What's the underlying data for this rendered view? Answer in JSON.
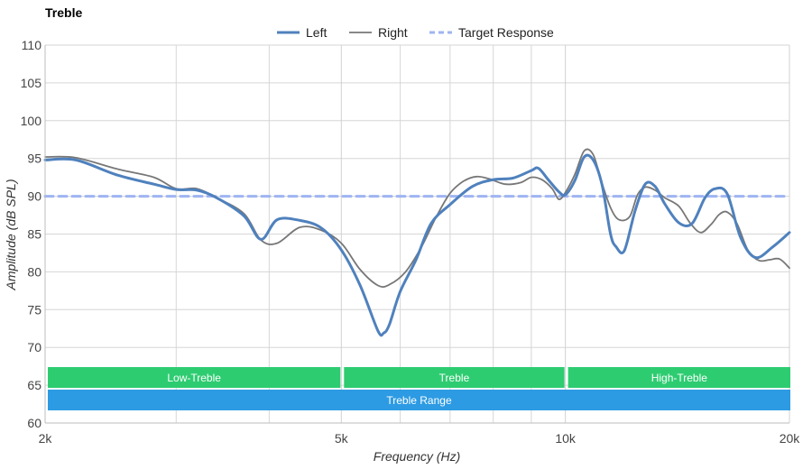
{
  "chart_data": {
    "type": "line",
    "title": "Treble",
    "xlabel": "Frequency (Hz)",
    "ylabel": "Amplitude (dB SPL)",
    "x_scale": "log",
    "xlim": [
      2000,
      20000
    ],
    "ylim": [
      60,
      110
    ],
    "x_ticks": [
      {
        "value": 2000,
        "label": "2k"
      },
      {
        "value": 5000,
        "label": "5k"
      },
      {
        "value": 10000,
        "label": "10k"
      },
      {
        "value": 20000,
        "label": "20k"
      }
    ],
    "x_minor_gridlines": [
      3000,
      4000,
      6000,
      7000,
      8000,
      9000
    ],
    "y_ticks": [
      60,
      65,
      70,
      75,
      80,
      85,
      90,
      95,
      100,
      105,
      110
    ],
    "grid": true,
    "legend_position": "top-center",
    "series": [
      {
        "name": "Left",
        "color": "#4f81bd",
        "style": "solid-thick",
        "x": [
          2000,
          2200,
          2500,
          2800,
          3000,
          3200,
          3400,
          3700,
          3900,
          4100,
          4400,
          4700,
          5000,
          5300,
          5600,
          5700,
          5800,
          6000,
          6300,
          6600,
          7000,
          7500,
          8000,
          8500,
          9000,
          9200,
          9500,
          9800,
          10000,
          10300,
          10600,
          10900,
          11200,
          11500,
          11700,
          12000,
          12400,
          12800,
          13200,
          13600,
          14200,
          14800,
          15400,
          15900,
          16500,
          17200,
          18000,
          19000,
          20000
        ],
        "y": [
          94.8,
          94.8,
          92.8,
          91.6,
          90.9,
          90.8,
          89.8,
          87.4,
          84.3,
          86.9,
          86.8,
          85.8,
          82.9,
          78.2,
          72.2,
          71.9,
          73.0,
          77.4,
          81.6,
          86.4,
          88.9,
          91.3,
          92.2,
          92.4,
          93.4,
          93.7,
          92.1,
          90.6,
          90.2,
          92.1,
          95.2,
          94.8,
          91.5,
          85.0,
          83.3,
          82.8,
          88.0,
          91.6,
          91.3,
          89.0,
          86.5,
          86.4,
          89.8,
          91.0,
          90.3,
          84.5,
          81.9,
          83.3,
          85.2
        ]
      },
      {
        "name": "Right",
        "color": "#777777",
        "style": "solid-thin",
        "x": [
          2000,
          2200,
          2500,
          2800,
          3000,
          3200,
          3400,
          3700,
          3900,
          4100,
          4400,
          4700,
          5000,
          5300,
          5600,
          5800,
          6100,
          6400,
          6700,
          7000,
          7300,
          7600,
          7900,
          8300,
          8700,
          9000,
          9300,
          9600,
          9800,
          10000,
          10300,
          10600,
          10900,
          11200,
          11500,
          11800,
          12200,
          12500,
          12800,
          13200,
          13600,
          14200,
          14700,
          15200,
          15700,
          16100,
          16500,
          17000,
          17600,
          18200,
          18800,
          19400,
          20000
        ],
        "y": [
          95.2,
          95.1,
          93.6,
          92.5,
          91.0,
          91.0,
          89.8,
          87.7,
          84.2,
          83.8,
          85.9,
          85.5,
          83.8,
          80.3,
          78.2,
          78.3,
          80.0,
          83.2,
          87.2,
          90.4,
          92.0,
          92.6,
          92.3,
          91.6,
          91.8,
          92.5,
          92.2,
          91.0,
          89.6,
          90.5,
          92.9,
          96.0,
          95.5,
          91.7,
          88.5,
          86.9,
          87.3,
          90.2,
          91.2,
          90.8,
          89.8,
          88.7,
          86.5,
          85.2,
          86.3,
          87.6,
          87.9,
          86.4,
          82.8,
          81.5,
          81.6,
          81.7,
          80.5
        ]
      },
      {
        "name": "Target Response",
        "color": "#9fb4f2",
        "style": "dashed",
        "x": [
          2000,
          20000
        ],
        "y": [
          90,
          90
        ]
      }
    ],
    "bands": [
      {
        "label": "Low-Treble",
        "x_start": 2000,
        "x_end": 5000,
        "row": 1,
        "color": "#2ecc71"
      },
      {
        "label": "Treble",
        "x_start": 5000,
        "x_end": 10000,
        "row": 1,
        "color": "#2ecc71"
      },
      {
        "label": "High-Treble",
        "x_start": 10000,
        "x_end": 20000,
        "row": 1,
        "color": "#2ecc71"
      },
      {
        "label": "Treble Range",
        "x_start": 2000,
        "x_end": 20000,
        "row": 2,
        "color": "#2d9be3"
      }
    ]
  }
}
